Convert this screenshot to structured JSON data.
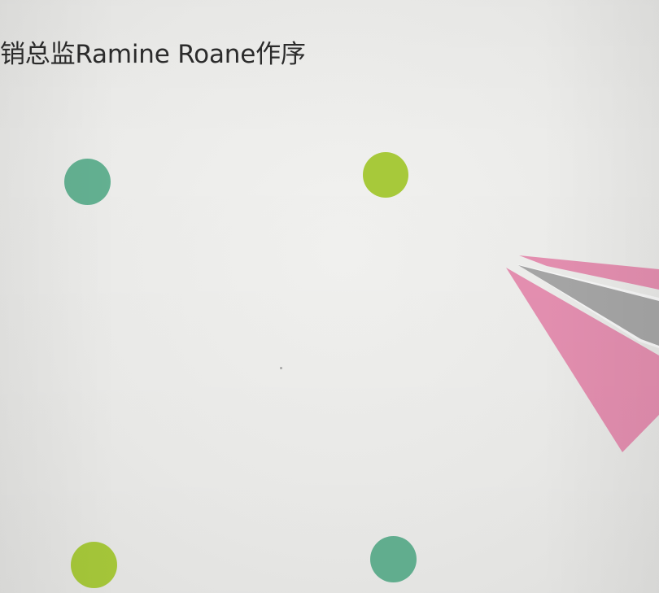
{
  "page": {
    "preface_text": "销总监Ramine Roane作序"
  },
  "colors": {
    "background": "#ebebea",
    "text": "#2b2b2b",
    "dot_green": "#63b091",
    "dot_lime": "#a7c93a",
    "plane_pink": "#e48fb0",
    "plane_gray": "#a6a6a6",
    "plane_outline": "#f7f7f7"
  },
  "icons": {
    "plane": "paper-plane-icon"
  }
}
